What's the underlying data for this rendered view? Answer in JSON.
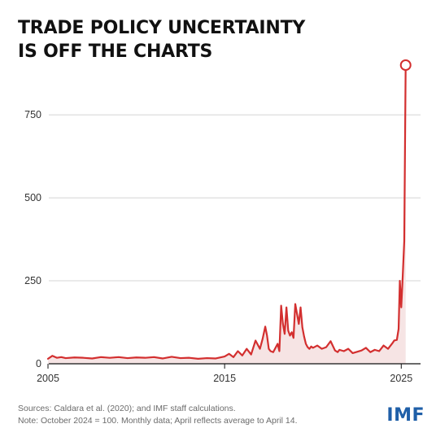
{
  "header": {
    "title_line1": "TRADE POLICY UNCERTAINTY",
    "title_line2": "IS OFF THE CHARTS"
  },
  "footer": {
    "sources": "Sources: Caldara et al. (2020); and IMF staff calculations.",
    "note": "Note: October 2024 = 100. Monthly data; April reflects average to April 14.",
    "logo": "IMF"
  },
  "colors": {
    "line": "#d32f2f",
    "fill": "#f6e4e4",
    "grid": "#d4d4d4",
    "axis": "#111111",
    "tick_text": "#333333",
    "logo": "#1f5fa8"
  },
  "chart_data": {
    "type": "area",
    "title": "TRADE POLICY UNCERTAINTY IS OFF THE CHARTS",
    "xlabel": "",
    "ylabel": "",
    "xlim": [
      2005,
      2026
    ],
    "ylim": [
      0,
      900
    ],
    "x_ticks": [
      2005,
      2015,
      2025
    ],
    "y_ticks": [
      250,
      500,
      750
    ],
    "y_zero_label": "0",
    "grid": true,
    "highlight_last_point": true,
    "series": [
      {
        "x": [
          2005.0,
          2005.25,
          2005.5,
          2005.75,
          2006.0,
          2006.5,
          2007.0,
          2007.5,
          2008.0,
          2008.5,
          2009.0,
          2009.5,
          2010.0,
          2010.5,
          2011.0,
          2011.5,
          2012.0,
          2012.5,
          2013.0,
          2013.5,
          2014.0,
          2014.5,
          2015.0,
          2015.25,
          2015.5,
          2015.75,
          2016.0,
          2016.25,
          2016.5,
          2016.75,
          2017.0,
          2017.15,
          2017.3,
          2017.4,
          2017.5,
          2017.6,
          2017.75,
          2018.0,
          2018.1,
          2018.2,
          2018.3,
          2018.4,
          2018.5,
          2018.6,
          2018.7,
          2018.8,
          2018.9,
          2019.0,
          2019.1,
          2019.2,
          2019.3,
          2019.4,
          2019.5,
          2019.6,
          2019.7,
          2019.8,
          2019.9,
          2020.0,
          2020.25,
          2020.5,
          2020.75,
          2021.0,
          2021.25,
          2021.4,
          2021.5,
          2021.75,
          2022.0,
          2022.25,
          2022.5,
          2022.75,
          2023.0,
          2023.25,
          2023.5,
          2023.75,
          2024.0,
          2024.25,
          2024.5,
          2024.6,
          2024.75,
          2024.85,
          2024.92,
          2025.0,
          2025.08,
          2025.17,
          2025.25
        ],
        "values": [
          15,
          24,
          18,
          20,
          17,
          19,
          18,
          16,
          20,
          18,
          20,
          17,
          19,
          18,
          20,
          16,
          21,
          17,
          18,
          15,
          17,
          16,
          22,
          30,
          20,
          38,
          25,
          45,
          28,
          70,
          45,
          75,
          112,
          85,
          45,
          38,
          35,
          60,
          38,
          175,
          120,
          90,
          170,
          100,
          85,
          95,
          78,
          180,
          150,
          120,
          170,
          110,
          82,
          60,
          50,
          45,
          52,
          48,
          55,
          45,
          50,
          68,
          40,
          35,
          42,
          38,
          45,
          32,
          36,
          40,
          48,
          35,
          42,
          38,
          55,
          45,
          62,
          70,
          72,
          105,
          250,
          170,
          260,
          370,
          900
        ]
      }
    ]
  }
}
